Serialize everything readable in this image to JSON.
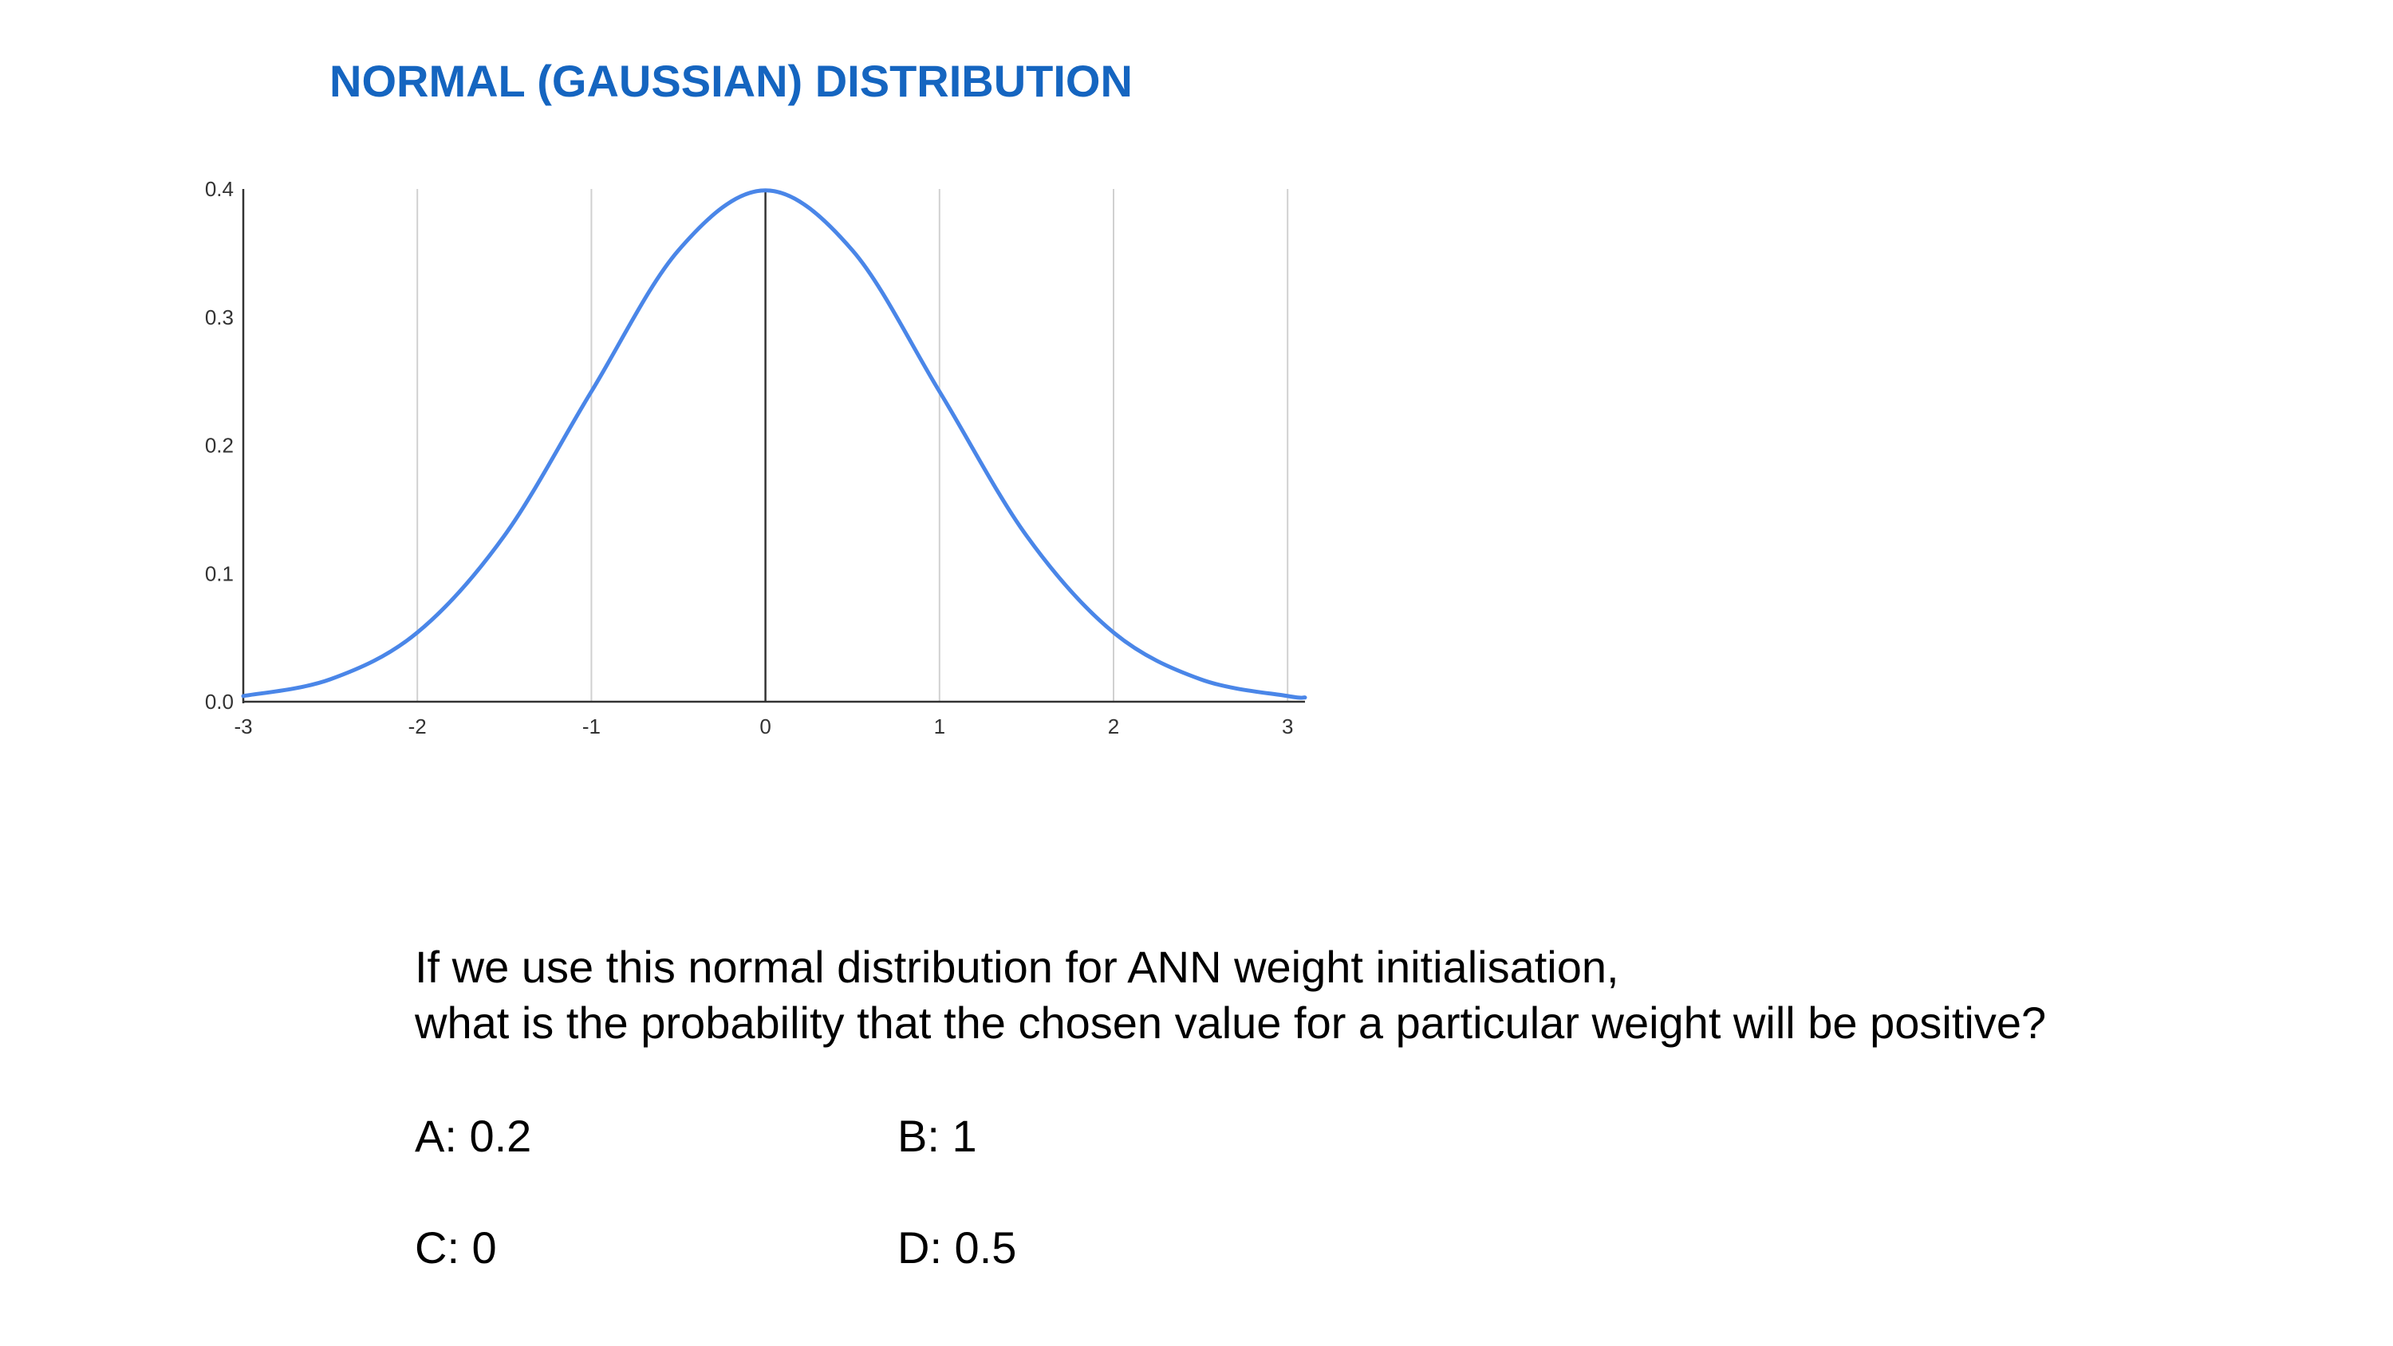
{
  "slide": {
    "title": "NORMAL (GAUSSIAN) DISTRIBUTION"
  },
  "chart_data": {
    "type": "line",
    "title": "",
    "xlabel": "",
    "ylabel": "",
    "x_ticks": [
      "-3",
      "-2",
      "-1",
      "0",
      "1",
      "2",
      "3"
    ],
    "y_ticks": [
      "0.0",
      "0.1",
      "0.2",
      "0.3",
      "0.4"
    ],
    "xlim": [
      -3,
      3.1
    ],
    "ylim": [
      0,
      0.4
    ],
    "grid": "vertical",
    "line_color": "#4a86e8",
    "series": [
      {
        "x": [
          -3.0,
          -2.5,
          -2.0,
          -1.5,
          -1.0,
          -0.5,
          0.0,
          0.5,
          1.0,
          1.5,
          2.0,
          2.5,
          3.0,
          3.1
        ],
        "values": [
          0.0044,
          0.0175,
          0.054,
          0.1295,
          0.242,
          0.3521,
          0.3989,
          0.3521,
          0.242,
          0.1295,
          0.054,
          0.0175,
          0.0044,
          0.0033
        ]
      }
    ]
  },
  "question": {
    "line1": "If we use this normal distribution for ANN weight initialisation,",
    "line2": "what is the probability that the chosen value for a particular weight will be positive?"
  },
  "options": {
    "a": "A: 0.2",
    "b": "B: 1",
    "c": "C: 0",
    "d": "D: 0.5"
  }
}
